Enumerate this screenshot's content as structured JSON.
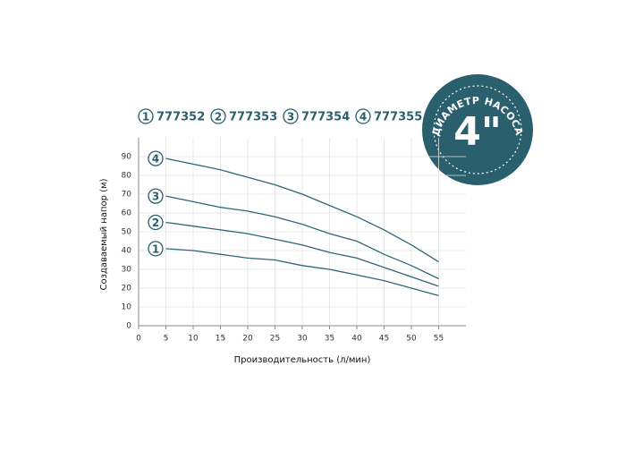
{
  "chart_data": {
    "type": "line",
    "x_label": "Производительность (л/мин)",
    "y_label": "Создаваемый напор (м)",
    "x": [
      5,
      10,
      15,
      20,
      25,
      30,
      35,
      40,
      45,
      50,
      55
    ],
    "xlim": [
      0,
      60
    ],
    "xticks": [
      0,
      5,
      10,
      15,
      20,
      25,
      30,
      35,
      40,
      45,
      50,
      55
    ],
    "ylim": [
      0,
      100
    ],
    "yticks": [
      0,
      10,
      20,
      30,
      40,
      50,
      60,
      70,
      80,
      90
    ],
    "grid": true,
    "series": [
      {
        "label": "1",
        "name": "777352",
        "color": "#2e6675",
        "values": [
          41,
          40,
          38,
          36,
          35,
          32,
          30,
          27,
          24,
          20,
          16
        ]
      },
      {
        "label": "2",
        "name": "777353",
        "color": "#2e6675",
        "values": [
          55,
          53,
          51,
          49,
          46,
          43,
          39,
          36,
          31,
          26,
          21
        ]
      },
      {
        "label": "3",
        "name": "777354",
        "color": "#2e6675",
        "values": [
          69,
          66,
          63,
          61,
          58,
          54,
          49,
          45,
          38,
          32,
          25
        ]
      },
      {
        "label": "4",
        "name": "777355",
        "color": "#2e6675",
        "values": [
          89,
          86,
          83,
          79,
          75,
          70,
          64,
          58,
          51,
          43,
          34
        ]
      }
    ],
    "badge": {
      "caption": "ДИАМЕТР НАСОСА",
      "size": "4\""
    }
  }
}
